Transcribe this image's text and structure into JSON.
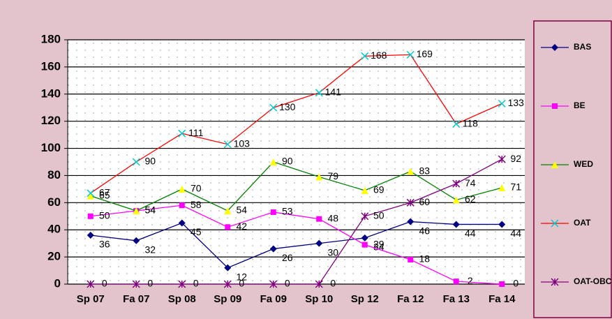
{
  "chart_data": {
    "type": "line",
    "categories": [
      "Sp 07",
      "Fa 07",
      "Sp 08",
      "Sp 09",
      "Fa 09",
      "Sp 10",
      "Sp 12",
      "Fa 12",
      "Fa 13",
      "Fa 14"
    ],
    "series": [
      {
        "name": "BAS",
        "color": "#000080",
        "marker": "diamond",
        "values": [
          36,
          32,
          45,
          12,
          26,
          30,
          34,
          46,
          44,
          44
        ]
      },
      {
        "name": "BE",
        "color": "#ff00ff",
        "marker": "square",
        "values": [
          50,
          54,
          58,
          42,
          53,
          48,
          29,
          18,
          2,
          0
        ]
      },
      {
        "name": "WED",
        "color": "#008000",
        "marker": "triangle",
        "values": [
          65,
          54,
          70,
          54,
          90,
          79,
          69,
          83,
          62,
          71
        ]
      },
      {
        "name": "OAT",
        "color": "#ff0000",
        "marker": "x",
        "values": [
          67,
          90,
          111,
          103,
          130,
          141,
          168,
          169,
          118,
          133
        ]
      },
      {
        "name": "OAT-OBC",
        "color": "#800080",
        "marker": "star",
        "values": [
          0,
          0,
          0,
          0,
          0,
          0,
          50,
          60,
          74,
          92
        ]
      }
    ],
    "ylim": [
      0,
      180
    ],
    "yticks": [
      0,
      20,
      40,
      60,
      80,
      100,
      120,
      140,
      160,
      180
    ],
    "grid": true,
    "legend": "right"
  }
}
